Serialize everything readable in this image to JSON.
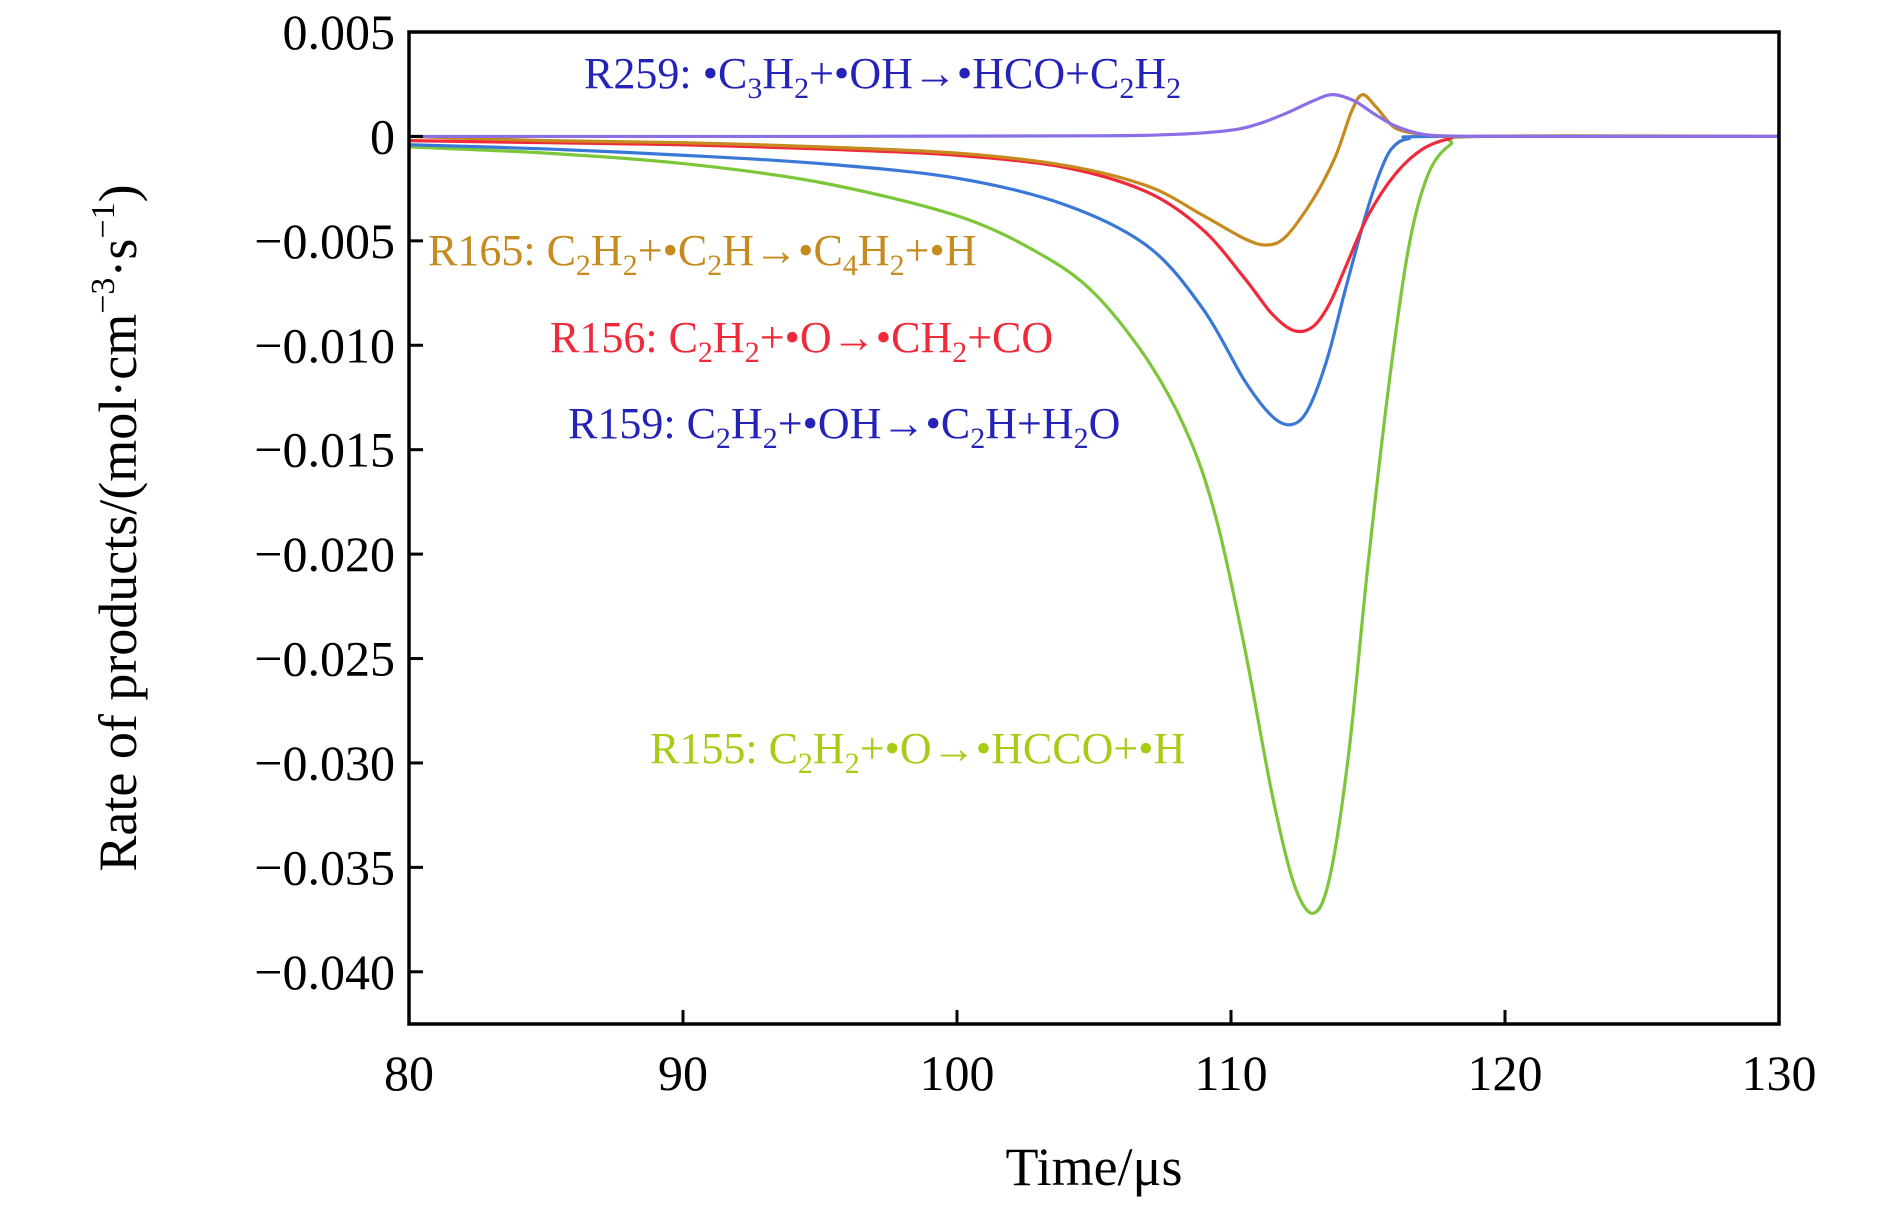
{
  "chart_data": {
    "type": "line",
    "xlabel": "Time/μs",
    "ylabel": "Rate of products/(mol·cm⁻³·s⁻¹)",
    "ylabel_parts": [
      "Rate of products/(mol·cm",
      "−3",
      "·s",
      "−1",
      ")"
    ],
    "xlim": [
      80,
      130
    ],
    "ylim": [
      -0.0425,
      0.005
    ],
    "x_ticks": [
      80,
      90,
      100,
      110,
      120,
      130
    ],
    "x_tick_labels": [
      "80",
      "90",
      "100",
      "110",
      "120",
      "130"
    ],
    "y_ticks": [
      0.005,
      0,
      -0.005,
      -0.01,
      -0.015,
      -0.02,
      -0.025,
      -0.03,
      -0.035,
      -0.04
    ],
    "y_tick_labels": [
      "0.005",
      "0",
      "−0.005",
      "−0.010",
      "−0.015",
      "−0.020",
      "−0.025",
      "−0.030",
      "−0.035",
      "−0.040"
    ],
    "grid": false,
    "series": [
      {
        "name": "R259: •C3H2+•OH→•HCO+C2H2",
        "color": "#8c6fe6",
        "label_color": "#2323b8",
        "label_parts": [
          [
            "R259: •C"
          ],
          [
            "3",
            "sub"
          ],
          [
            "H"
          ],
          [
            "2",
            "sub"
          ],
          [
            "+•OH→•HCO+C"
          ],
          [
            "2",
            "sub"
          ],
          [
            "H"
          ],
          [
            "2",
            "sub"
          ]
        ],
        "x": [
          80,
          95,
          105,
          108,
          110,
          111,
          112,
          113,
          113.7,
          114.5,
          115.2,
          116,
          117,
          118,
          120,
          130
        ],
        "y": [
          0,
          0,
          3e-05,
          0.0001,
          0.0003,
          0.0006,
          0.0011,
          0.0017,
          0.002,
          0.0017,
          0.0011,
          0.0005,
          0.0001,
          2e-05,
          0,
          0
        ]
      },
      {
        "name": "R165: C2H2+•C2H→•C4H2+•H",
        "color": "#c78a1e",
        "label_color": "#c78a1e",
        "label_parts": [
          [
            "R165: C"
          ],
          [
            "2",
            "sub"
          ],
          [
            "H"
          ],
          [
            "2",
            "sub"
          ],
          [
            "+•C"
          ],
          [
            "2",
            "sub"
          ],
          [
            "H→•C"
          ],
          [
            "4",
            "sub"
          ],
          [
            "H"
          ],
          [
            "2",
            "sub"
          ],
          [
            "+•H"
          ]
        ],
        "x": [
          80,
          85,
          90,
          95,
          100,
          104,
          107,
          109,
          110.5,
          111.3,
          112,
          113,
          113.8,
          114.4,
          114.8,
          115.3,
          116,
          117,
          118,
          120,
          130
        ],
        "y": [
          0,
          -0.0002,
          -0.0003,
          -0.0005,
          -0.0008,
          -0.0014,
          -0.0024,
          -0.0038,
          -0.0049,
          -0.0052,
          -0.0048,
          -0.003,
          -0.001,
          0.0012,
          0.002,
          0.0014,
          0.0004,
          0.0001,
          0,
          0,
          0
        ]
      },
      {
        "name": "R156: C2H2+•O→•CH2+CO",
        "color": "#f02a3a",
        "label_color": "#f02a3a",
        "label_parts": [
          [
            "R156: C"
          ],
          [
            "2",
            "sub"
          ],
          [
            "H"
          ],
          [
            "2",
            "sub"
          ],
          [
            "+•O→•CH"
          ],
          [
            "2",
            "sub"
          ],
          [
            "+CO"
          ]
        ],
        "x": [
          80,
          85,
          90,
          95,
          100,
          104,
          107,
          109,
          110.5,
          111.5,
          112.3,
          113,
          113.6,
          114.2,
          115,
          116,
          117,
          118,
          119,
          130
        ],
        "y": [
          -0.0002,
          -0.0003,
          -0.0004,
          -0.0006,
          -0.0009,
          -0.0015,
          -0.0027,
          -0.0045,
          -0.0068,
          -0.0085,
          -0.0093,
          -0.0091,
          -0.008,
          -0.0062,
          -0.0038,
          -0.0018,
          -0.0006,
          -0.0001,
          0,
          0
        ]
      },
      {
        "name": "R159: C2H2+•OH→•C2H+H2O",
        "color": "#3a78d8",
        "label_color": "#2323b8",
        "label_parts": [
          [
            "R159: C"
          ],
          [
            "2",
            "sub"
          ],
          [
            "H"
          ],
          [
            "2",
            "sub"
          ],
          [
            "+•OH→•C"
          ],
          [
            "2",
            "sub"
          ],
          [
            "H+H"
          ],
          [
            "2",
            "sub"
          ],
          [
            "O"
          ]
        ],
        "x": [
          80,
          85,
          90,
          95,
          100,
          104,
          107,
          109,
          110.5,
          111.5,
          112.2,
          112.8,
          113.5,
          114.2,
          115,
          115.6,
          116,
          116.5,
          117.5,
          130
        ],
        "y": [
          -0.0004,
          -0.0006,
          -0.0009,
          -0.0013,
          -0.002,
          -0.0033,
          -0.0053,
          -0.0083,
          -0.0117,
          -0.0134,
          -0.0138,
          -0.0131,
          -0.0107,
          -0.0072,
          -0.0034,
          -0.0012,
          -0.0004,
          -0.0001,
          0,
          0
        ]
      },
      {
        "name": "R155: C2H2+•O→•HCCO+•H",
        "color": "#7cc63a",
        "label_color": "#a8cc16",
        "label_parts": [
          [
            "R155: C"
          ],
          [
            "2",
            "sub"
          ],
          [
            "H"
          ],
          [
            "2",
            "sub"
          ],
          [
            "+•O→•HCCO+•H"
          ]
        ],
        "x": [
          80,
          85,
          90,
          95,
          100,
          103,
          105,
          107,
          108.5,
          109.5,
          110.5,
          111.5,
          112.3,
          113,
          113.6,
          114.3,
          115,
          115.8,
          116.5,
          117.2,
          118,
          119,
          130
        ],
        "y": [
          -0.0005,
          -0.0008,
          -0.0013,
          -0.0022,
          -0.0038,
          -0.0056,
          -0.0075,
          -0.0108,
          -0.0145,
          -0.0185,
          -0.0245,
          -0.0315,
          -0.0358,
          -0.0372,
          -0.0355,
          -0.0295,
          -0.0205,
          -0.0115,
          -0.0052,
          -0.0018,
          -0.0004,
          0,
          0
        ]
      }
    ]
  }
}
